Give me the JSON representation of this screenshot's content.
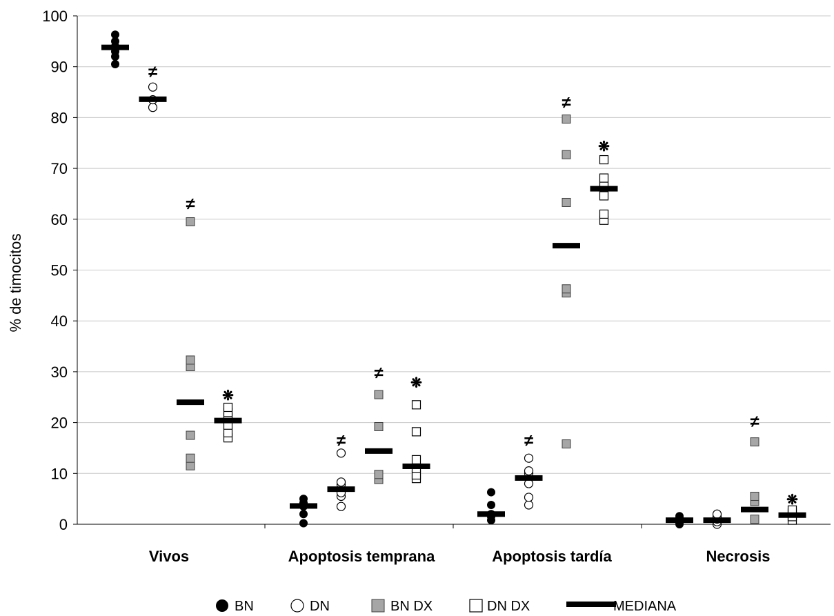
{
  "chart_data": {
    "type": "scatter",
    "title": "",
    "ylabel": "% de timocitos",
    "xlabel": "",
    "ylim": [
      0,
      100
    ],
    "yticks": [
      0,
      10,
      20,
      30,
      40,
      50,
      60,
      70,
      80,
      90,
      100
    ],
    "grid": true,
    "legend_position": "bottom",
    "categories": [
      "Vivos",
      "Apoptosis temprana",
      "Apoptosis tardía",
      "Necrosis"
    ],
    "series": [
      {
        "name": "BN",
        "marker": "filled-circle",
        "color": "#000000",
        "values": [
          [
            90.5,
            92,
            93,
            94,
            95,
            96.3
          ],
          [
            0.2,
            2,
            3.5,
            4.2,
            5
          ],
          [
            0.8,
            1.5,
            2,
            3.8,
            6.3
          ],
          [
            0,
            0.3,
            0.8,
            1.2,
            1.6
          ]
        ],
        "median": [
          93.8,
          3.6,
          2,
          0.8
        ]
      },
      {
        "name": "DN",
        "marker": "open-circle",
        "color": "#000000",
        "values": [
          [
            82,
            83.5,
            86
          ],
          [
            3.5,
            5.5,
            6.2,
            7.8,
            8.3,
            14
          ],
          [
            3.8,
            5.3,
            8,
            10,
            10.5,
            13
          ],
          [
            0,
            0.5,
            1,
            1.5,
            2
          ]
        ],
        "median": [
          83.6,
          6.9,
          9.1,
          0.8
        ]
      },
      {
        "name": "BN DX",
        "marker": "grey-square",
        "color": "#a6a6a6",
        "values": [
          [
            11.5,
            13,
            17.5,
            31,
            32.3,
            59.5
          ],
          [
            8.8,
            9.8,
            19.2,
            25.5
          ],
          [
            15.8,
            45.5,
            46.3,
            63.3,
            72.7,
            79.7
          ],
          [
            1,
            4.5,
            5.5,
            16.2
          ]
        ],
        "median": [
          24,
          14.4,
          54.8,
          2.9
        ]
      },
      {
        "name": "DN DX",
        "marker": "open-square",
        "color": "#000000",
        "values": [
          [
            17,
            18,
            19.5,
            21,
            22,
            23
          ],
          [
            9,
            9.7,
            11,
            12.7,
            18.2,
            23.5
          ],
          [
            59.8,
            61,
            64.6,
            66.5,
            68.1,
            71.7
          ],
          [
            0.8,
            1.5,
            2.2,
            2.8
          ]
        ],
        "median": [
          20.4,
          11.4,
          66,
          1.8
        ]
      }
    ],
    "annotations": [
      {
        "series": "DN",
        "category": "Vivos",
        "symbol": "≠",
        "y": 89
      },
      {
        "series": "BN DX",
        "category": "Vivos",
        "symbol": "≠",
        "y": 63
      },
      {
        "series": "DN DX",
        "category": "Vivos",
        "symbol": "❋",
        "y": 25.5
      },
      {
        "series": "DN",
        "category": "Apoptosis temprana",
        "symbol": "≠",
        "y": 16.5
      },
      {
        "series": "BN DX",
        "category": "Apoptosis temprana",
        "symbol": "≠",
        "y": 29.8
      },
      {
        "series": "DN DX",
        "category": "Apoptosis temprana",
        "symbol": "❋",
        "y": 28
      },
      {
        "series": "DN",
        "category": "Apoptosis tardía",
        "symbol": "≠",
        "y": 16.5
      },
      {
        "series": "BN DX",
        "category": "Apoptosis tardía",
        "symbol": "≠",
        "y": 83
      },
      {
        "series": "DN DX",
        "category": "Apoptosis tardía",
        "symbol": "❋",
        "y": 74.5
      },
      {
        "series": "BN DX",
        "category": "Necrosis",
        "symbol": "≠",
        "y": 20.2
      },
      {
        "series": "DN DX",
        "category": "Necrosis",
        "symbol": "❋",
        "y": 5
      }
    ],
    "legend": [
      {
        "label": "BN",
        "marker": "filled-circle"
      },
      {
        "label": "DN",
        "marker": "open-circle"
      },
      {
        "label": "BN DX",
        "marker": "grey-square"
      },
      {
        "label": "DN DX",
        "marker": "open-square"
      },
      {
        "label": "MEDIANA",
        "marker": "bar"
      }
    ]
  }
}
